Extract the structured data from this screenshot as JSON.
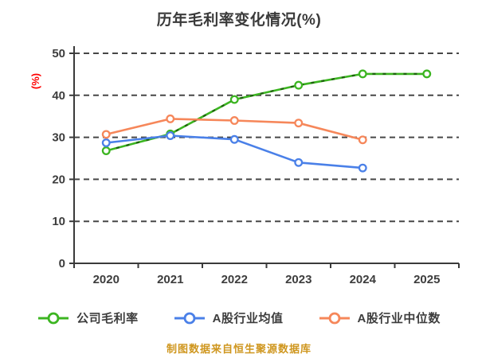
{
  "header": {
    "title": "历年毛利率变化情况(%)"
  },
  "footer": {
    "source_note": "制图数据来自恒生聚源数据库"
  },
  "colors": {
    "background": "#ffffff",
    "title": "#3a3a3a",
    "axis": "#3a3a3a",
    "tick_label": "#3d3d3d",
    "grid": "#474747",
    "y_label": "#fe0000",
    "footer": "#cf961e",
    "marker_fill": "#ffffff",
    "company_green": "#3cb521",
    "industry_avg_blue": "#4a80e8",
    "industry_median_orange": "#f6875a",
    "green_dash_overlay": "rgba(18,58,8,0.7)"
  },
  "chart_data": {
    "type": "line",
    "title": "历年毛利率变化情况(%)",
    "xlabel": "",
    "ylabel": "(%)",
    "categories": [
      "2020",
      "2021",
      "2022",
      "2023",
      "2024",
      "2025"
    ],
    "series": [
      {
        "name": "公司毛利率",
        "color": "#3cb521",
        "marker": "circle",
        "overlay_dash": true,
        "values": [
          26.8,
          30.8,
          39.0,
          42.4,
          45.1,
          45.1
        ]
      },
      {
        "name": "A股行业均值",
        "color": "#4a80e8",
        "marker": "circle",
        "overlay_dash": false,
        "values": [
          28.7,
          30.4,
          29.5,
          24.0,
          22.7,
          null
        ]
      },
      {
        "name": "A股行业中位数",
        "color": "#f6875a",
        "marker": "circle",
        "overlay_dash": false,
        "values": [
          30.7,
          34.4,
          34.0,
          33.4,
          29.4,
          null
        ]
      }
    ],
    "ylim": [
      0,
      50
    ],
    "yticks": [
      0,
      10,
      20,
      30,
      40,
      50
    ],
    "grid": "horizontal-dashed",
    "legend_position": "bottom"
  }
}
